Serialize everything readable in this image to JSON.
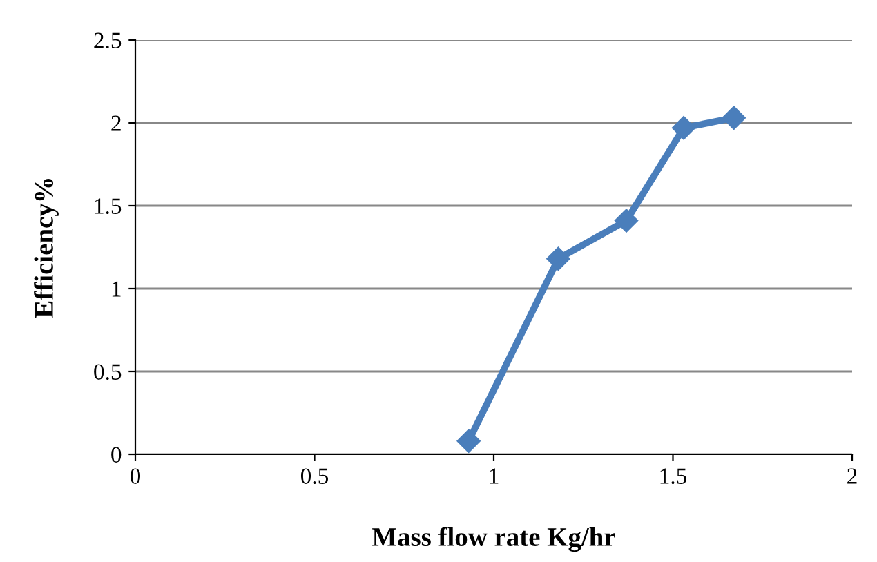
{
  "chart_data": {
    "type": "line",
    "xlabel": "Mass flow rate Kg/hr",
    "ylabel": "Efficiency%",
    "x": [
      0.93,
      1.18,
      1.37,
      1.53,
      1.67
    ],
    "series": [
      {
        "color": "#4a7ebb",
        "values": [
          0.08,
          1.18,
          1.41,
          1.97,
          2.03
        ]
      }
    ],
    "xlim": [
      0,
      2
    ],
    "xticks": [
      0,
      0.5,
      1,
      1.5,
      2
    ],
    "ylim": [
      0,
      2.5
    ],
    "yticks": [
      0,
      0.5,
      1,
      1.5,
      2,
      2.5
    ],
    "grid": "y",
    "marker": "diamond",
    "line_style": "solid"
  }
}
